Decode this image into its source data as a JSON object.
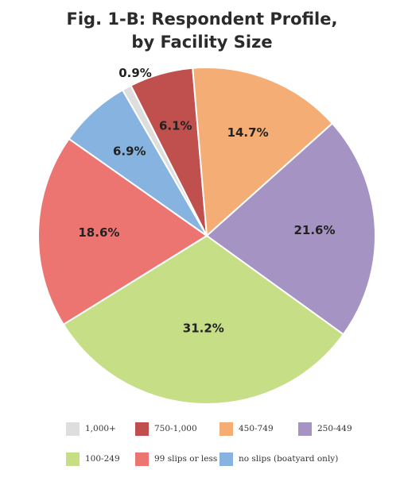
{
  "chart_data": {
    "type": "pie",
    "title_lines": [
      "Fig. 1-B: Respondent Profile,",
      "by Facility Size"
    ],
    "slices": [
      {
        "name": "1,000+",
        "value": 0.9,
        "label": "0.9%",
        "color": "#dedede"
      },
      {
        "name": "750-1,000",
        "value": 6.1,
        "label": "6.1%",
        "color": "#c0504d"
      },
      {
        "name": "450-749",
        "value": 14.7,
        "label": "14.7%",
        "color": "#f4ad74"
      },
      {
        "name": "250-449",
        "value": 21.6,
        "label": "21.6%",
        "color": "#a593c3"
      },
      {
        "name": "100-249",
        "value": 31.2,
        "label": "31.2%",
        "color": "#c6df86"
      },
      {
        "name": "99 slips or less",
        "value": 18.6,
        "label": "18.6%",
        "color": "#ec7572"
      },
      {
        "name": "no slips (boatyard only)",
        "value": 6.9,
        "label": "6.9%",
        "color": "#87b3e0"
      }
    ],
    "legend_placement": "bottom"
  }
}
